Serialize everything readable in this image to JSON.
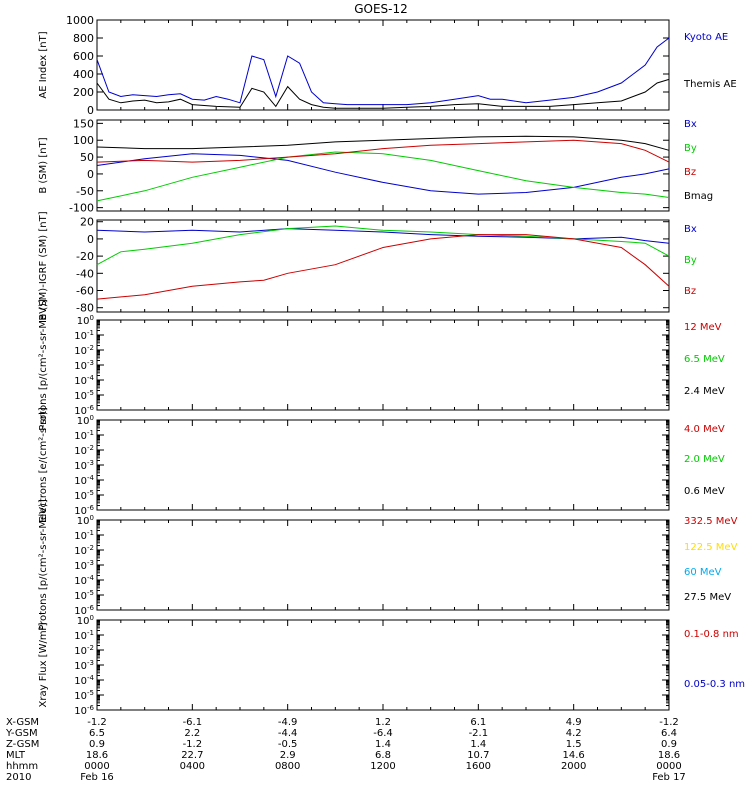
{
  "title": "GOES-12",
  "time_axis": {
    "hours": [
      0,
      4,
      8,
      12,
      16,
      20,
      24
    ],
    "rows": [
      {
        "label": "X-GSM",
        "values": [
          "-1.2",
          "-6.1",
          "-4.9",
          "1.2",
          "6.1",
          "4.9",
          "-1.2"
        ]
      },
      {
        "label": "Y-GSM",
        "values": [
          "6.5",
          "2.2",
          "-4.4",
          "-6.4",
          "-2.1",
          "4.2",
          "6.4"
        ]
      },
      {
        "label": "Z-GSM",
        "values": [
          "0.9",
          "-1.2",
          "-0.5",
          "1.4",
          "1.4",
          "1.5",
          "0.9"
        ]
      },
      {
        "label": "MLT",
        "values": [
          "18.6",
          "22.7",
          "2.9",
          "6.8",
          "10.7",
          "14.6",
          "18.6"
        ]
      },
      {
        "label": "hhmm",
        "values": [
          "0000",
          "0400",
          "0800",
          "1200",
          "1600",
          "2000",
          "0000"
        ]
      },
      {
        "label": "2010",
        "values": [
          "Feb 16",
          "",
          "",
          "",
          "",
          "",
          "Feb 17"
        ]
      }
    ]
  },
  "chart_data": [
    {
      "type": "line",
      "ylabel": "AE Index [nT]",
      "ylim": [
        0,
        1000
      ],
      "yticks": [
        "0",
        "200",
        "400",
        "600",
        "800",
        "1000"
      ],
      "series": [
        {
          "name": "Kyoto AE",
          "color": "#0000cc",
          "x": [
            0,
            0.5,
            1,
            1.5,
            2,
            2.5,
            3,
            3.5,
            4,
            4.5,
            5,
            5.5,
            6,
            6.5,
            7,
            7.5,
            8,
            8.5,
            9,
            9.5,
            10,
            10.5,
            11,
            11.5,
            12,
            13,
            14,
            15,
            16,
            16.5,
            17,
            18,
            19,
            20,
            21,
            22,
            22.5,
            23,
            23.5,
            24
          ],
          "y": [
            560,
            200,
            150,
            170,
            160,
            150,
            170,
            180,
            120,
            110,
            150,
            120,
            80,
            600,
            560,
            150,
            600,
            520,
            200,
            80,
            70,
            60,
            60,
            60,
            60,
            60,
            80,
            120,
            160,
            120,
            120,
            80,
            110,
            140,
            200,
            300,
            400,
            500,
            700,
            800
          ]
        },
        {
          "name": "Themis AE",
          "color": "#000000",
          "x": [
            0,
            0.5,
            1,
            1.5,
            2,
            2.5,
            3,
            3.5,
            4,
            5,
            6,
            6.5,
            7,
            7.5,
            8,
            8.5,
            9,
            9.5,
            10,
            11,
            12,
            13,
            14,
            15,
            16,
            17,
            18,
            19,
            20,
            21,
            22,
            23,
            23.5,
            24
          ],
          "y": [
            300,
            120,
            80,
            100,
            110,
            80,
            90,
            120,
            60,
            40,
            30,
            240,
            200,
            40,
            260,
            120,
            60,
            30,
            20,
            20,
            20,
            30,
            40,
            60,
            70,
            40,
            40,
            40,
            60,
            80,
            100,
            200,
            300,
            340
          ]
        }
      ]
    },
    {
      "type": "line",
      "ylabel": "B (SM) [nT]",
      "ylim": [
        -110,
        160
      ],
      "yticks": [
        "-100",
        "-50",
        "0",
        "50",
        "100",
        "150"
      ],
      "series": [
        {
          "name": "Bx",
          "color": "#0000cc",
          "x": [
            0,
            2,
            4,
            6,
            8,
            10,
            12,
            14,
            16,
            18,
            20,
            22,
            23,
            24
          ],
          "y": [
            25,
            45,
            60,
            55,
            40,
            5,
            -25,
            -50,
            -60,
            -55,
            -40,
            -10,
            0,
            15
          ]
        },
        {
          "name": "By",
          "color": "#00cc00",
          "x": [
            0,
            2,
            4,
            6,
            8,
            10,
            12,
            14,
            16,
            18,
            20,
            22,
            23,
            24
          ],
          "y": [
            -80,
            -50,
            -10,
            20,
            50,
            65,
            60,
            40,
            10,
            -20,
            -40,
            -55,
            -60,
            -70
          ]
        },
        {
          "name": "Bz",
          "color": "#cc0000",
          "x": [
            0,
            2,
            4,
            6,
            8,
            10,
            12,
            14,
            16,
            18,
            20,
            22,
            23,
            24
          ],
          "y": [
            35,
            40,
            35,
            40,
            50,
            60,
            75,
            85,
            90,
            95,
            100,
            90,
            70,
            35
          ]
        },
        {
          "name": "Bmag",
          "color": "#000000",
          "x": [
            0,
            2,
            4,
            6,
            8,
            10,
            12,
            14,
            16,
            18,
            20,
            22,
            23,
            24
          ],
          "y": [
            80,
            75,
            75,
            80,
            85,
            95,
            100,
            105,
            110,
            112,
            110,
            100,
            90,
            70
          ]
        }
      ]
    },
    {
      "type": "line",
      "ylabel": "B (SM)-IGRF (SM) [nT]",
      "ylim": [
        -85,
        22
      ],
      "yticks": [
        "-80",
        "-60",
        "-40",
        "-20",
        "0",
        "20"
      ],
      "series": [
        {
          "name": "Bx",
          "color": "#0000cc",
          "x": [
            0,
            2,
            4,
            6,
            8,
            10,
            12,
            14,
            16,
            18,
            20,
            22,
            23,
            24
          ],
          "y": [
            10,
            8,
            10,
            8,
            12,
            10,
            8,
            5,
            3,
            2,
            0,
            2,
            -2,
            -5
          ]
        },
        {
          "name": "By",
          "color": "#00cc00",
          "x": [
            0,
            1,
            2,
            4,
            6,
            8,
            10,
            12,
            14,
            16,
            18,
            20,
            22,
            23,
            24
          ],
          "y": [
            -30,
            -15,
            -12,
            -5,
            5,
            12,
            15,
            10,
            8,
            5,
            3,
            0,
            -3,
            -5,
            -20
          ]
        },
        {
          "name": "Bz",
          "color": "#cc0000",
          "x": [
            0,
            2,
            4,
            6,
            7,
            8,
            10,
            12,
            14,
            16,
            18,
            20,
            22,
            23,
            24
          ],
          "y": [
            -70,
            -65,
            -55,
            -50,
            -48,
            -40,
            -30,
            -10,
            0,
            5,
            5,
            0,
            -10,
            -30,
            -55
          ]
        }
      ]
    },
    {
      "type": "line",
      "ylabel": "Protons [p/(cm²-s-sr-MeV)]",
      "log_exponents": [
        -6,
        0
      ],
      "series": [
        {
          "name": "12 MeV",
          "color": "#cc0000"
        },
        {
          "name": "6.5 MeV",
          "color": "#00cc00"
        },
        {
          "name": "2.4 MeV",
          "color": "#000000"
        }
      ]
    },
    {
      "type": "line",
      "ylabel": "Electrons [e/(cm²-s-sr)]",
      "log_exponents": [
        -6,
        0
      ],
      "series": [
        {
          "name": "4.0 MeV",
          "color": "#cc0000"
        },
        {
          "name": "2.0 MeV",
          "color": "#00cc00"
        },
        {
          "name": "0.6 MeV",
          "color": "#000000"
        }
      ]
    },
    {
      "type": "line",
      "ylabel": "Protons [p/(cm²-s-sr-MeV)]",
      "log_exponents": [
        -6,
        0
      ],
      "series": [
        {
          "name": "332.5 MeV",
          "color": "#cc0000"
        },
        {
          "name": "122.5 MeV",
          "color": "#ffdd00"
        },
        {
          "name": "60 MeV",
          "color": "#00aaee"
        },
        {
          "name": "27.5 MeV",
          "color": "#000000"
        }
      ]
    },
    {
      "type": "line",
      "ylabel": "Xray Flux [W/m²]",
      "log_exponents": [
        -6,
        0
      ],
      "series": [
        {
          "name": "0.1-0.8 nm",
          "color": "#cc0000"
        },
        {
          "name": "0.05-0.3 nm",
          "color": "#0000cc"
        }
      ]
    }
  ]
}
